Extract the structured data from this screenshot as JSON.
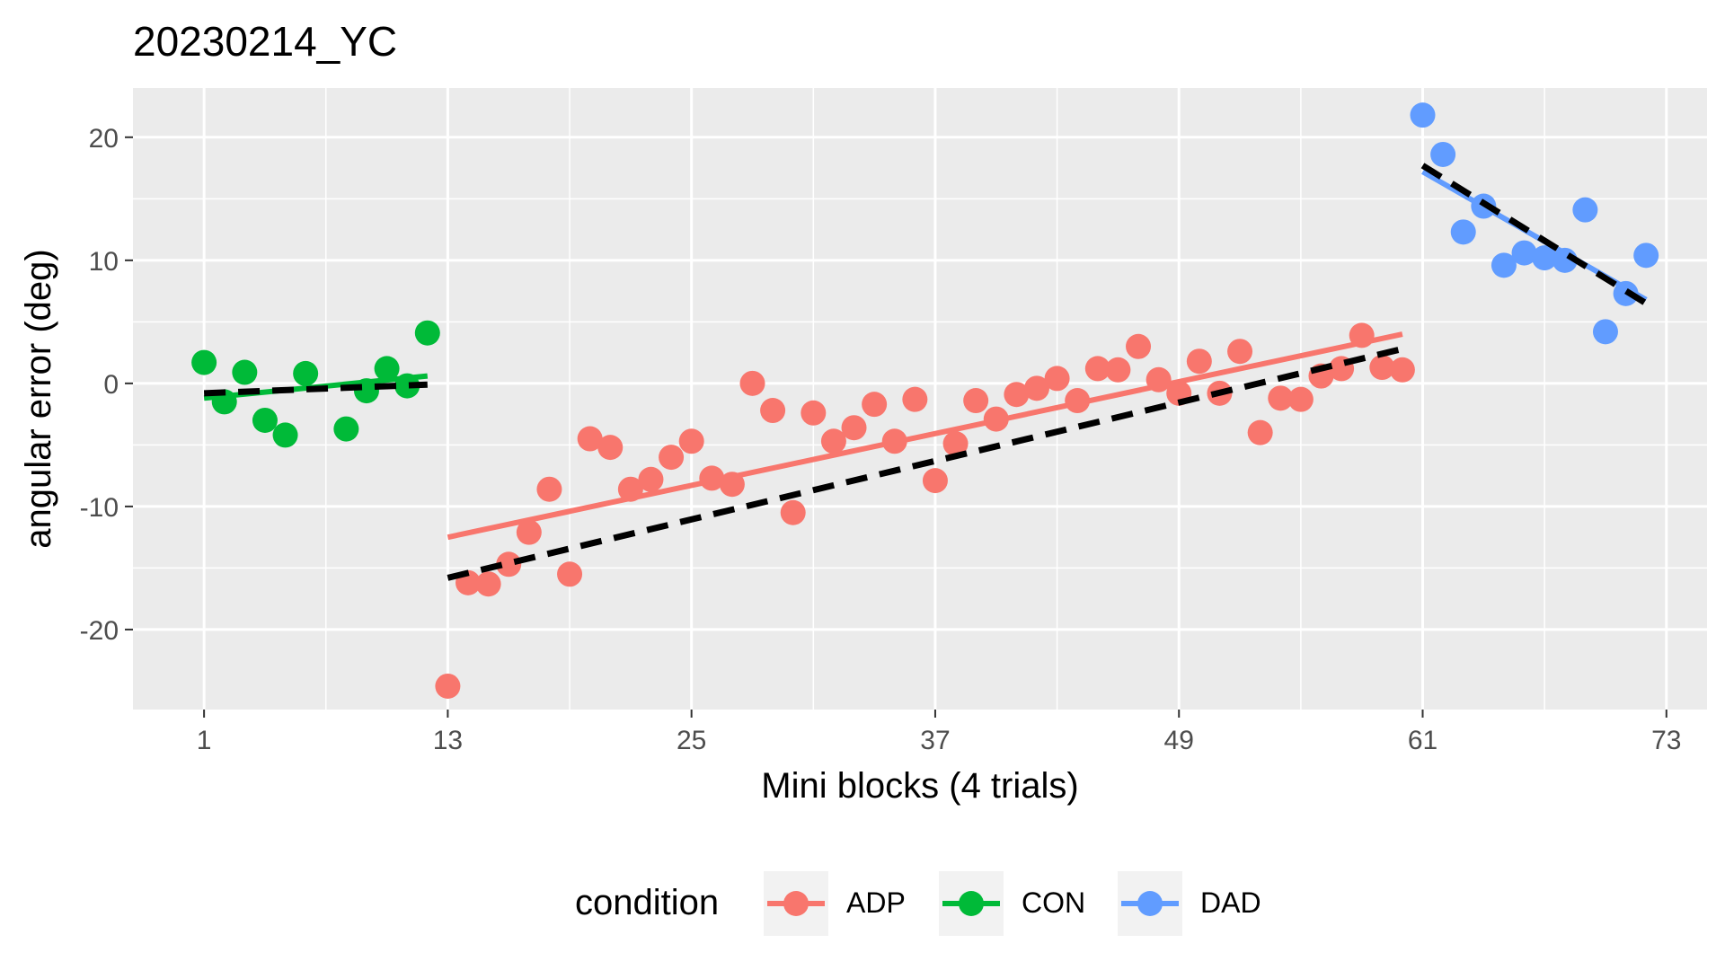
{
  "chart_data": {
    "type": "scatter",
    "title": "20230214_YC",
    "xlabel": "Mini blocks (4 trials)",
    "ylabel": "angular error (deg)",
    "xlim": [
      -2.5,
      75
    ],
    "ylim": [
      -26.5,
      24
    ],
    "xticks": [
      1,
      13,
      25,
      37,
      49,
      61,
      73
    ],
    "yticks": [
      -20,
      -10,
      0,
      10,
      20
    ],
    "ytick_labels": [
      "-20",
      "-10",
      "0",
      "10",
      "20"
    ],
    "grid": true,
    "legend": {
      "title": "condition",
      "position": "bottom",
      "entries": [
        "ADP",
        "CON",
        "DAD"
      ]
    },
    "series": [
      {
        "name": "CON",
        "color": "#00BA38",
        "x": [
          1,
          2,
          3,
          4,
          5,
          6,
          8,
          9,
          10,
          11,
          12
        ],
        "y": [
          1.7,
          -1.5,
          0.9,
          -3.0,
          -4.2,
          0.8,
          -3.7,
          -0.6,
          1.2,
          -0.2,
          4.1
        ],
        "fit": {
          "x": [
            1,
            12
          ],
          "y": [
            -1.2,
            0.6
          ]
        },
        "dashed_fit": {
          "x": [
            1,
            12
          ],
          "y": [
            -0.8,
            -0.1
          ]
        }
      },
      {
        "name": "ADP",
        "color": "#F8766D",
        "x": [
          13,
          14,
          15,
          16,
          17,
          18,
          19,
          20,
          21,
          22,
          23,
          24,
          25,
          26,
          27,
          28,
          29,
          30,
          31,
          32,
          33,
          34,
          35,
          36,
          37,
          38,
          39,
          40,
          41,
          42,
          43,
          44,
          45,
          46,
          47,
          48,
          49,
          50,
          51,
          52,
          53,
          54,
          55,
          56,
          57,
          58,
          59,
          60
        ],
        "y": [
          -24.6,
          -16.2,
          -16.3,
          -14.7,
          -12.1,
          -8.6,
          -15.5,
          -4.5,
          -5.2,
          -8.6,
          -7.8,
          -6.0,
          -4.7,
          -7.7,
          -8.2,
          0.0,
          -2.2,
          -10.5,
          -2.4,
          -4.7,
          -3.6,
          -1.7,
          -4.7,
          -1.3,
          -7.9,
          -4.9,
          -1.4,
          -2.9,
          -0.9,
          -0.4,
          0.4,
          -1.4,
          1.2,
          1.1,
          3.0,
          0.3,
          -0.8,
          1.8,
          -0.8,
          2.6,
          -4.0,
          -1.2,
          -1.3,
          0.6,
          1.2,
          3.9,
          1.3,
          1.1
        ],
        "fit": {
          "x": [
            13,
            60
          ],
          "y": [
            -12.5,
            4.0
          ]
        },
        "dashed_fit": {
          "x": [
            13,
            60
          ],
          "y": [
            -15.8,
            2.8
          ]
        }
      },
      {
        "name": "DAD",
        "color": "#619CFF",
        "x": [
          61,
          62,
          63,
          64,
          65,
          66,
          67,
          68,
          69,
          70,
          71,
          72
        ],
        "y": [
          21.8,
          18.6,
          12.3,
          14.4,
          9.6,
          10.6,
          10.2,
          10.0,
          14.1,
          4.2,
          7.3,
          10.4
        ],
        "fit": {
          "x": [
            61,
            72
          ],
          "y": [
            17.2,
            6.8
          ]
        },
        "dashed_fit": {
          "x": [
            61,
            72
          ],
          "y": [
            17.7,
            6.5
          ]
        }
      }
    ]
  }
}
